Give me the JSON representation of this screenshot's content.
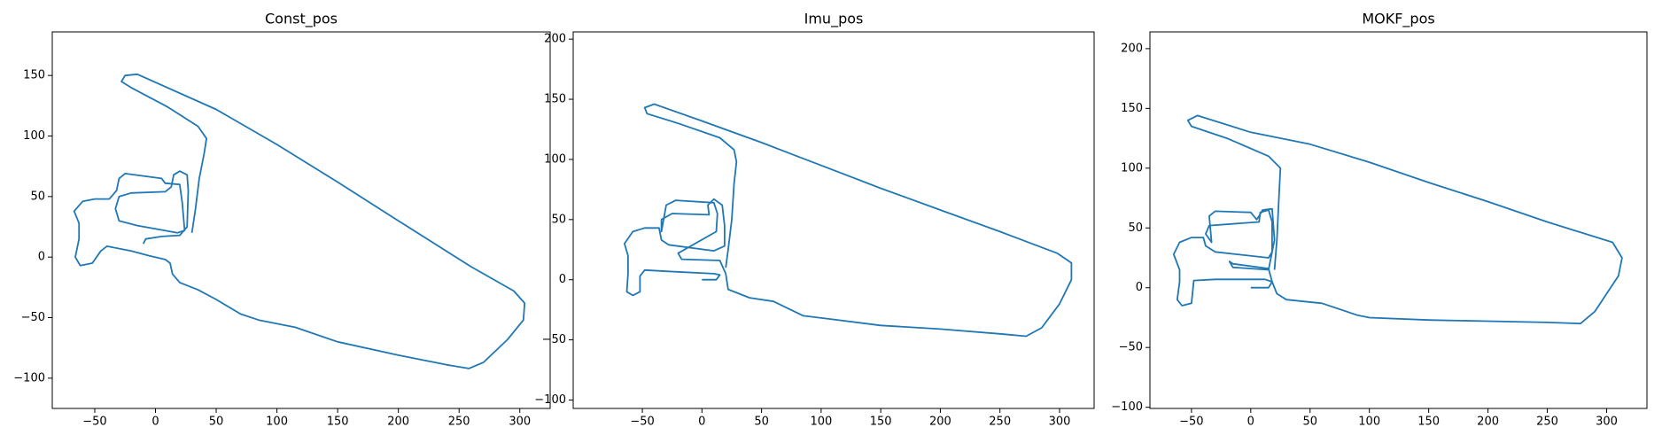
{
  "chart_data": [
    {
      "type": "line",
      "title": "Const_pos",
      "color": "#1f77b4",
      "x": [
        -10,
        -8,
        5,
        20,
        26,
        27,
        26,
        20,
        15,
        13,
        8,
        -20,
        -30,
        -33,
        -30,
        -15,
        18,
        24,
        22,
        20,
        8,
        5,
        -25,
        -30,
        -32,
        -38,
        -50,
        -60,
        -67,
        -63,
        -63,
        -66,
        -62,
        -52,
        -45,
        -40,
        -20,
        -5,
        8,
        12,
        14,
        20,
        35,
        50,
        70,
        85,
        115,
        150,
        200,
        240,
        258,
        270,
        290,
        303,
        304,
        295,
        260,
        200,
        150,
        100,
        50,
        -15,
        -25,
        -28,
        -20,
        10,
        35,
        42,
        40,
        36,
        33,
        30
      ],
      "values": [
        11,
        15,
        17,
        18,
        25,
        55,
        68,
        71,
        68,
        58,
        54,
        53,
        50,
        40,
        30,
        26,
        20,
        22,
        45,
        60,
        61,
        65,
        69,
        65,
        55,
        48,
        48,
        46,
        38,
        28,
        15,
        0,
        -7,
        -5,
        5,
        9,
        5,
        1,
        -2,
        -5,
        -14,
        -21,
        -27,
        -35,
        -47,
        -52,
        -58,
        -70,
        -81,
        -89,
        -92,
        -87,
        -68,
        -52,
        -38,
        -28,
        -8,
        30,
        62,
        93,
        122,
        151,
        150,
        145,
        140,
        124,
        108,
        98,
        85,
        65,
        40,
        20
      ],
      "xlim": [
        -85,
        325
      ],
      "ylim": [
        -125,
        186
      ],
      "xticks": [
        {
          "value": -50,
          "label": "−50"
        },
        0,
        50,
        100,
        150,
        200,
        250,
        300
      ],
      "yticks": [
        {
          "value": -100,
          "label": "−100"
        },
        {
          "value": -50,
          "label": "−50"
        },
        0,
        50,
        100,
        150
      ]
    },
    {
      "type": "line",
      "title": "Imu_pos",
      "color": "#1f77b4",
      "x": [
        0,
        12,
        15,
        10,
        -30,
        -48,
        -52,
        -52,
        -58,
        -63,
        -62,
        -62,
        -65,
        -58,
        -48,
        -36,
        -34,
        -28,
        10,
        19,
        19,
        17,
        10,
        5,
        6,
        -25,
        -34,
        -34,
        -30,
        -22,
        10,
        13,
        12,
        -20,
        -17,
        15,
        20,
        22,
        40,
        60,
        85,
        110,
        150,
        200,
        250,
        272,
        285,
        300,
        310,
        310,
        298,
        250,
        200,
        150,
        100,
        50,
        0,
        -40,
        -48,
        -46,
        -20,
        15,
        27,
        29,
        27,
        25,
        22,
        20
      ],
      "values": [
        0,
        0,
        4,
        5,
        7,
        8,
        3,
        -10,
        -13,
        -10,
        5,
        20,
        30,
        40,
        43,
        43,
        33,
        29,
        24,
        28,
        45,
        62,
        67,
        62,
        54,
        55,
        50,
        40,
        62,
        66,
        64,
        55,
        40,
        22,
        17,
        16,
        5,
        -8,
        -15,
        -18,
        -30,
        -33,
        -38,
        -41,
        -45,
        -47,
        -40,
        -20,
        0,
        14,
        22,
        40,
        58,
        76,
        95,
        114,
        132,
        146,
        143,
        138,
        130,
        118,
        108,
        98,
        80,
        50,
        25,
        10
      ],
      "xlim": [
        -108,
        329
      ],
      "ylim": [
        -107,
        206
      ],
      "xticks": [
        {
          "value": -50,
          "label": "−50"
        },
        0,
        50,
        100,
        150,
        200,
        250,
        300
      ],
      "yticks": [
        {
          "value": -100,
          "label": "−100"
        },
        {
          "value": -50,
          "label": "−50"
        },
        0,
        50,
        100,
        150,
        200
      ]
    },
    {
      "type": "line",
      "title": "MOKF_pos",
      "color": "#1f77b4",
      "x": [
        0,
        15,
        18,
        12,
        -30,
        -48,
        -50,
        -58,
        -62,
        -60,
        -60,
        -65,
        -60,
        -50,
        -40,
        -38,
        -30,
        15,
        18,
        18,
        15,
        8,
        7,
        -35,
        -38,
        -33,
        -35,
        -30,
        0,
        5,
        7,
        10,
        18,
        20,
        15,
        -15,
        -18,
        -15,
        15,
        18,
        22,
        30,
        60,
        90,
        100,
        150,
        200,
        250,
        278,
        290,
        310,
        313,
        305,
        250,
        200,
        150,
        100,
        50,
        0,
        -45,
        -53,
        -50,
        -20,
        15,
        25,
        24,
        22,
        20
      ],
      "values": [
        0,
        0,
        5,
        7,
        7,
        6,
        -13,
        -15,
        -10,
        5,
        15,
        28,
        38,
        42,
        42,
        35,
        30,
        25,
        30,
        55,
        65,
        63,
        55,
        52,
        45,
        38,
        60,
        64,
        63,
        57,
        60,
        65,
        66,
        40,
        15,
        17,
        22,
        20,
        16,
        5,
        -5,
        -10,
        -13,
        -23,
        -25,
        -27,
        -28,
        -29,
        -30,
        -20,
        10,
        25,
        38,
        55,
        72,
        88,
        105,
        120,
        130,
        144,
        140,
        135,
        125,
        110,
        100,
        80,
        40,
        15
      ],
      "xlim": [
        -85,
        334
      ],
      "ylim": [
        -101,
        214
      ],
      "xticks": [
        {
          "value": -50,
          "label": "−50"
        },
        0,
        50,
        100,
        150,
        200,
        250,
        300
      ],
      "yticks": [
        {
          "value": -100,
          "label": "−100"
        },
        {
          "value": -50,
          "label": "−50"
        },
        0,
        50,
        100,
        150,
        200
      ]
    }
  ]
}
